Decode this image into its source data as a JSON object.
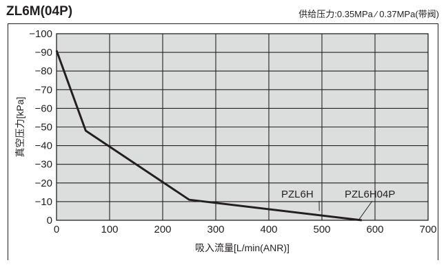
{
  "header": {
    "title": "ZL6M(04P)",
    "subtitle": "供给压力:0.35MPa ⁄ 0.37MPa(带阀)"
  },
  "chart_data": {
    "type": "line",
    "title": "ZL6M(04P)",
    "xlabel": "吸入流量[L/min(ANR)]",
    "ylabel": "真空压力[kPa]",
    "xlim": [
      0,
      700
    ],
    "ylim": [
      0,
      -100
    ],
    "x_ticks": [
      "0",
      "100",
      "200",
      "300",
      "400",
      "500",
      "600",
      "700"
    ],
    "y_ticks": [
      "−100",
      "−90",
      "−80",
      "−70",
      "−60",
      "−50",
      "−40",
      "−30",
      "−20",
      "−10",
      "0"
    ],
    "grid": true,
    "series": [
      {
        "name": "",
        "color": "#231f20",
        "points": [
          [
            0,
            -91
          ],
          [
            55,
            -48
          ],
          [
            250,
            -11
          ],
          [
            575,
            0
          ]
        ]
      }
    ],
    "annotations": [
      {
        "text": "PZL6H",
        "x": 495,
        "y": -5
      },
      {
        "text": "PZL6H04P",
        "x": 575,
        "y": 0
      }
    ]
  },
  "colors": {
    "plot_background": "#dcdddd",
    "grid": "#231f20",
    "line": "#231f20"
  }
}
